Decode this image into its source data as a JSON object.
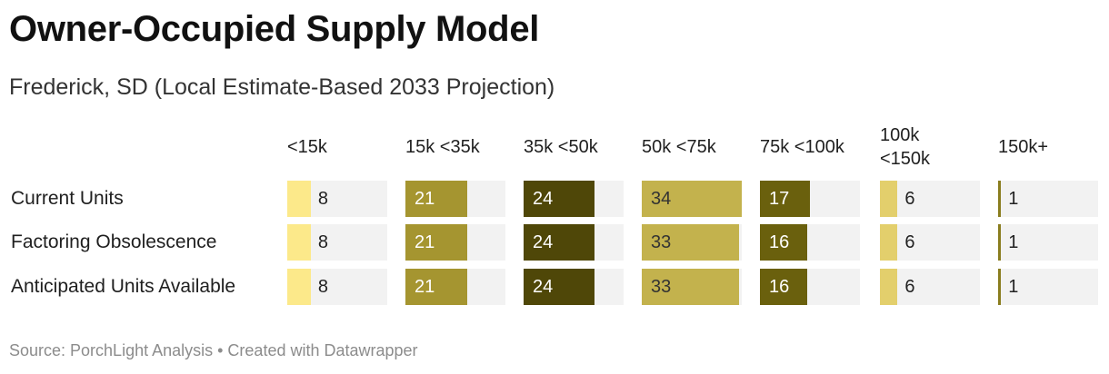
{
  "title": "Owner-Occupied Supply Model",
  "subtitle": "Frederick, SD (Local Estimate-Based 2033 Projection)",
  "source": "Source: PorchLight Analysis • Created with Datawrapper",
  "chart_data": {
    "type": "bar",
    "categories": [
      "<15k",
      "15k <35k",
      "35k <50k",
      "50k <75k",
      "75k <100k",
      "100k <150k",
      "150k+"
    ],
    "series": [
      {
        "name": "Current Units",
        "values": [
          8,
          21,
          24,
          34,
          17,
          6,
          1
        ]
      },
      {
        "name": "Factoring Obsolescence",
        "values": [
          8,
          21,
          24,
          33,
          16,
          6,
          1
        ]
      },
      {
        "name": "Anticipated Units Available",
        "values": [
          8,
          21,
          24,
          33,
          16,
          6,
          1
        ]
      }
    ],
    "column_colors": [
      "#fce98a",
      "#a59530",
      "#4f4708",
      "#c3b24d",
      "#6a600d",
      "#e3cf6c",
      "#8a7d1e"
    ],
    "value_label_colors": [
      "#222222",
      "#ffffff",
      "#ffffff",
      "#333333",
      "#ffffff",
      "#222222",
      "#222222"
    ],
    "xlim": [
      0,
      34
    ],
    "legend": "none",
    "grid": false
  }
}
